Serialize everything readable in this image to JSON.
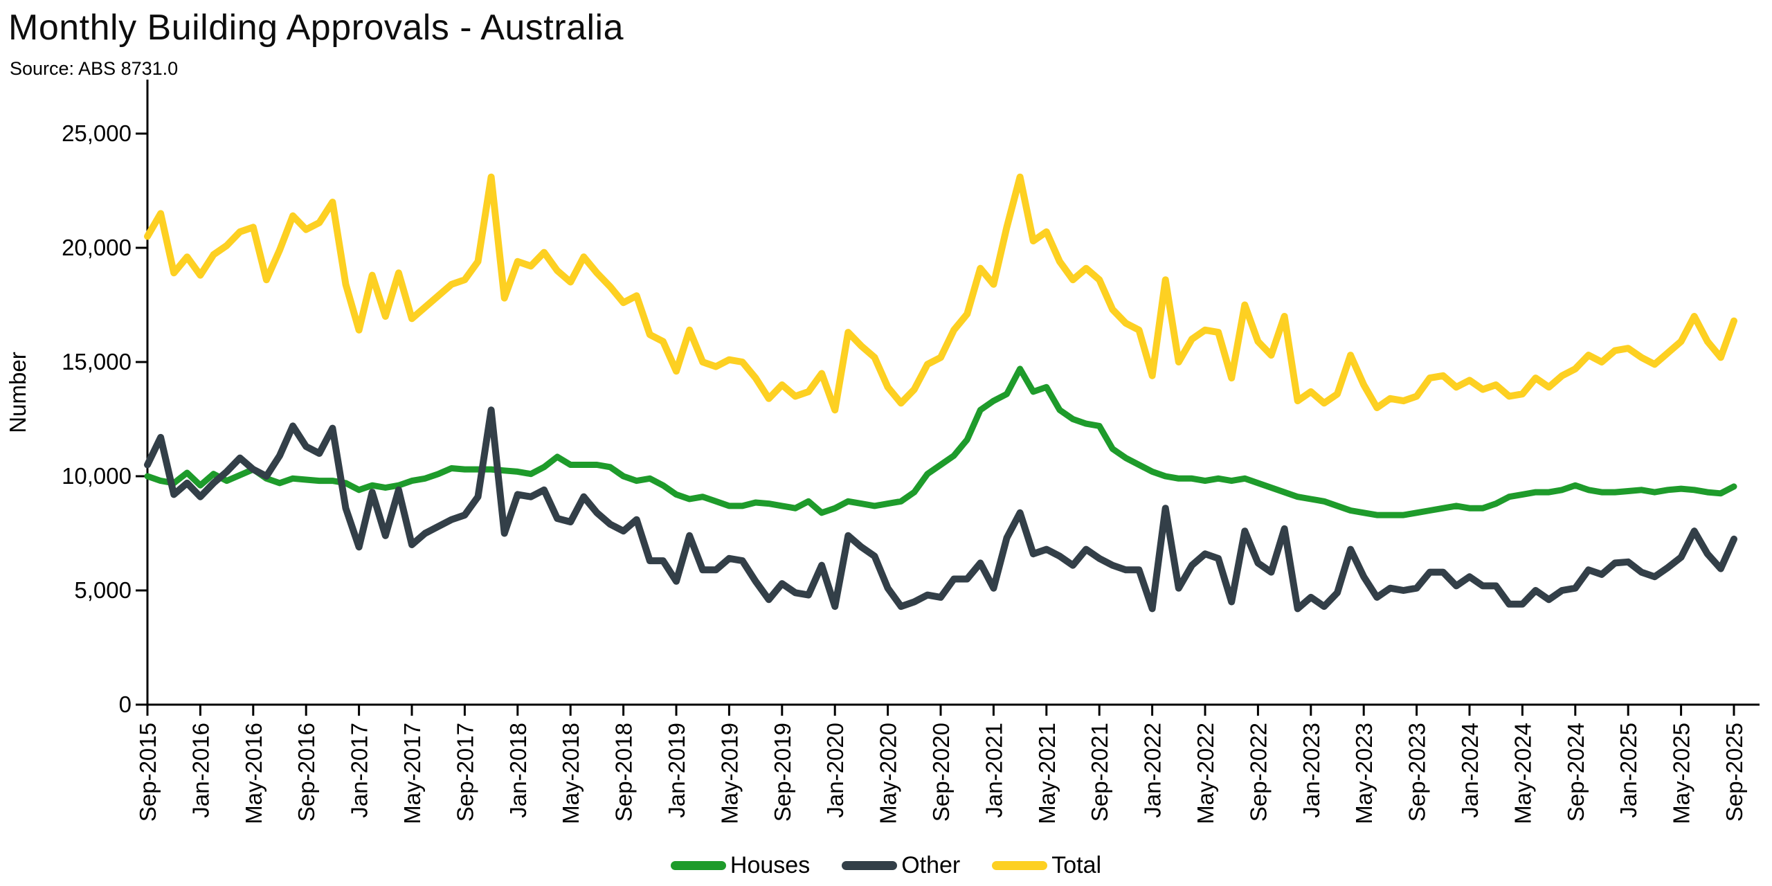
{
  "header": {
    "title": "Monthly Building Approvals - Australia",
    "source": "Source: ABS 8731.0"
  },
  "chart_data": {
    "type": "line",
    "title": "Monthly Building Approvals - Australia",
    "xlabel": "",
    "ylabel": "Number",
    "ylim": [
      0,
      25000
    ],
    "ytick_step": 5000,
    "ytick_labels": [
      "0",
      "5,000",
      "10,000",
      "15,000",
      "20,000",
      "25,000"
    ],
    "x_start": "Sep-2015",
    "x_end": "Sep-2025",
    "x_frequency": "monthly",
    "xtick_every_n_months": 4,
    "xtick_labels": [
      "Sep-2015",
      "Jan-2016",
      "May-2016",
      "Sep-2016",
      "Jan-2017",
      "May-2017",
      "Sep-2017",
      "Jan-2018",
      "May-2018",
      "Sep-2018",
      "Jan-2019",
      "May-2019",
      "Sep-2019",
      "Jan-2020",
      "May-2020",
      "Sep-2020",
      "Jan-2021",
      "May-2021",
      "Sep-2021",
      "Jan-2022",
      "May-2022",
      "Sep-2022",
      "Jan-2023",
      "May-2023",
      "Sep-2023",
      "Jan-2024",
      "May-2024",
      "Sep-2024",
      "Jan-2025",
      "May-2025",
      "Sep-2025"
    ],
    "grid": false,
    "legend_position": "bottom-center",
    "series": [
      {
        "name": "Houses",
        "color": "#1e9b2b",
        "values": [
          10000,
          9800,
          9700,
          10150,
          9600,
          10100,
          9800,
          10050,
          10300,
          9900,
          9700,
          9900,
          9850,
          9800,
          9800,
          9700,
          9400,
          9600,
          9500,
          9600,
          9800,
          9900,
          10100,
          10350,
          10300,
          10300,
          10300,
          10250,
          10200,
          10100,
          10400,
          10850,
          10500,
          10500,
          10500,
          10400,
          10000,
          9800,
          9900,
          9600,
          9200,
          9000,
          9100,
          8900,
          8700,
          8700,
          8850,
          8800,
          8700,
          8600,
          8900,
          8400,
          8600,
          8900,
          8800,
          8700,
          8800,
          8900,
          9300,
          10100,
          10500,
          10900,
          11600,
          12900,
          13300,
          13600,
          14700,
          13700,
          13900,
          12900,
          12500,
          12300,
          12200,
          11200,
          10800,
          10500,
          10200,
          10000,
          9900,
          9900,
          9800,
          9900,
          9800,
          9900,
          9700,
          9500,
          9300,
          9100,
          9000,
          8900,
          8700,
          8500,
          8400,
          8300,
          8300,
          8300,
          8400,
          8500,
          8600,
          8700,
          8600,
          8600,
          8800,
          9100,
          9200,
          9300,
          9300,
          9400,
          9600,
          9400,
          9300,
          9300,
          9350,
          9400,
          9300,
          9400,
          9450,
          9400,
          9300,
          9250,
          9550
        ]
      },
      {
        "name": "Other",
        "color": "#333f48",
        "values": [
          10500,
          11700,
          9200,
          9700,
          9100,
          9700,
          10200,
          10800,
          10300,
          10000,
          10900,
          12200,
          11300,
          11000,
          12100,
          8600,
          6900,
          9300,
          7400,
          9400,
          7000,
          7500,
          7800,
          8100,
          8300,
          9100,
          12900,
          7500,
          9200,
          9100,
          9400,
          8150,
          8000,
          9100,
          8400,
          7900,
          7600,
          8100,
          6300,
          6300,
          5400,
          7400,
          5900,
          5900,
          6400,
          6300,
          5400,
          4600,
          5300,
          4900,
          4800,
          6100,
          4300,
          7400,
          6900,
          6500,
          5100,
          4300,
          4500,
          4800,
          4700,
          5500,
          5500,
          6200,
          5100,
          7300,
          8400,
          6600,
          6800,
          6500,
          6100,
          6800,
          6400,
          6100,
          5900,
          5900,
          4200,
          8600,
          5100,
          6100,
          6600,
          6400,
          4500,
          7600,
          6200,
          5800,
          7700,
          4200,
          4700,
          4300,
          4900,
          6800,
          5600,
          4700,
          5100,
          5000,
          5100,
          5800,
          5800,
          5200,
          5600,
          5200,
          5200,
          4400,
          4400,
          5000,
          4600,
          5000,
          5100,
          5900,
          5700,
          6200,
          6250,
          5800,
          5600,
          6000,
          6450,
          7600,
          6600,
          5950,
          7250
        ]
      },
      {
        "name": "Total",
        "color": "#fdd022",
        "values": [
          20500,
          21500,
          18900,
          19600,
          18800,
          19700,
          20100,
          20700,
          20900,
          18600,
          19900,
          21400,
          20800,
          21100,
          22000,
          18400,
          16400,
          18800,
          17000,
          18900,
          16900,
          17400,
          17900,
          18400,
          18600,
          19400,
          23100,
          17800,
          19400,
          19200,
          19800,
          19000,
          18500,
          19600,
          18900,
          18300,
          17600,
          17900,
          16200,
          15900,
          14600,
          16400,
          15000,
          14800,
          15100,
          15000,
          14300,
          13400,
          14000,
          13500,
          13700,
          14500,
          12900,
          16300,
          15700,
          15200,
          13900,
          13200,
          13800,
          14900,
          15200,
          16400,
          17100,
          19100,
          18400,
          20900,
          23100,
          20300,
          20700,
          19400,
          18600,
          19100,
          18600,
          17300,
          16700,
          16400,
          14400,
          18600,
          15000,
          16000,
          16400,
          16300,
          14300,
          17500,
          15900,
          15300,
          17000,
          13300,
          13700,
          13200,
          13600,
          15300,
          14000,
          13000,
          13400,
          13300,
          13500,
          14300,
          14400,
          13900,
          14200,
          13800,
          14000,
          13500,
          13600,
          14300,
          13900,
          14400,
          14700,
          15300,
          15000,
          15500,
          15600,
          15200,
          14900,
          15400,
          15900,
          17000,
          15900,
          15200,
          16800
        ]
      }
    ]
  },
  "layout_colors": {
    "axis": "#000000",
    "text": "#000000",
    "background": "#ffffff"
  }
}
